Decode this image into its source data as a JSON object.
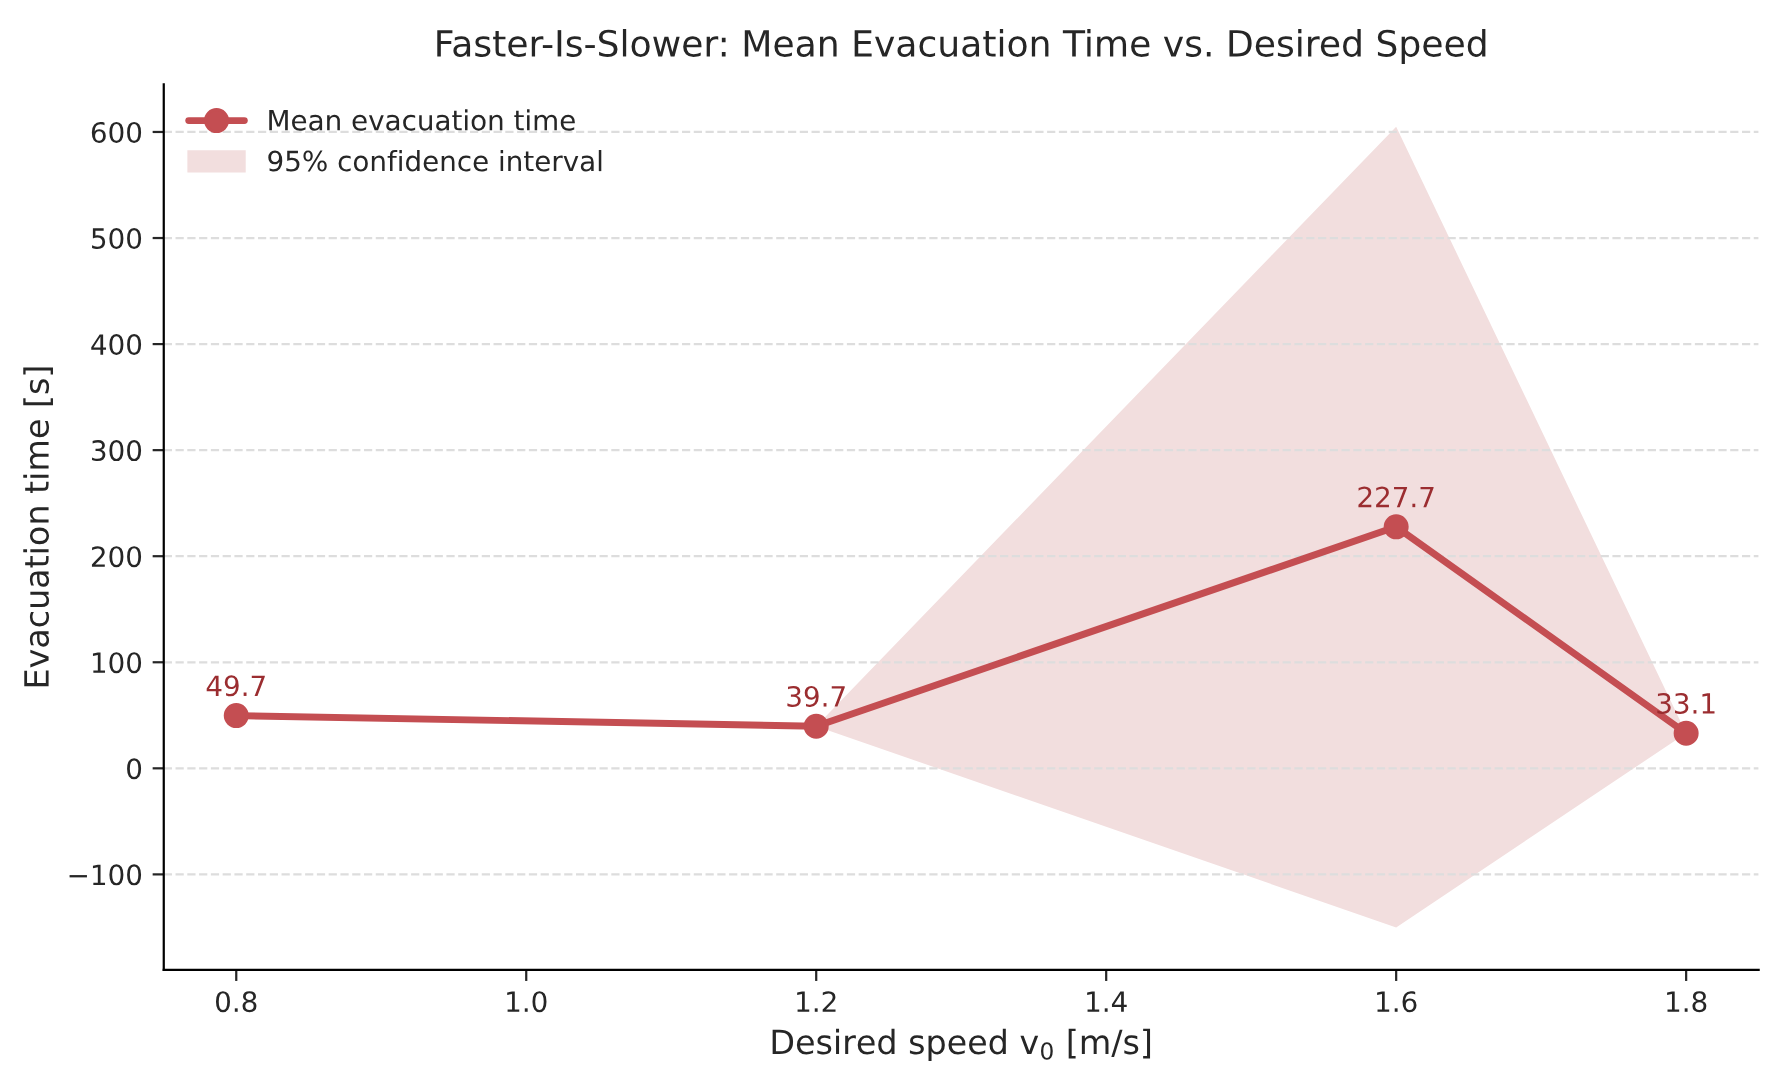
{
  "chart_data": {
    "type": "line",
    "title": "Faster-Is-Slower: Mean Evacuation Time vs. Desired Speed",
    "xlabel": "Desired speed v$_{0}$ [m/s]",
    "ylabel": "Evacuation time [s]",
    "x": [
      0.8,
      1.2,
      1.6,
      1.8
    ],
    "series": [
      {
        "name": "Mean evacuation time",
        "color": "#c44e52",
        "values": [
          49.7,
          39.7,
          227.7,
          33.1
        ]
      },
      {
        "type": "area",
        "name": "95% confidence interval",
        "color": "#f2dede",
        "values": [
          null,
          null,
          null,
          null
        ],
        "lower": [
          49.7,
          39.7,
          -150,
          33.1
        ],
        "upper": [
          49.7,
          39.7,
          605,
          33.1
        ]
      }
    ],
    "xlim": [
      0.75,
      1.85
    ],
    "xticks": [
      0.8,
      {
        "value": 1.0,
        "label": "1.0"
      },
      1.2,
      1.4,
      1.6,
      1.8
    ],
    "ylim": [
      -190,
      645
    ],
    "yticks": [
      {
        "value": -100,
        "label": "−100"
      },
      0,
      100,
      200,
      300,
      400,
      500,
      600
    ],
    "grid": "y",
    "legend": "top left",
    "marker": "circle",
    "line_style": "solid",
    "data_labels": true
  }
}
